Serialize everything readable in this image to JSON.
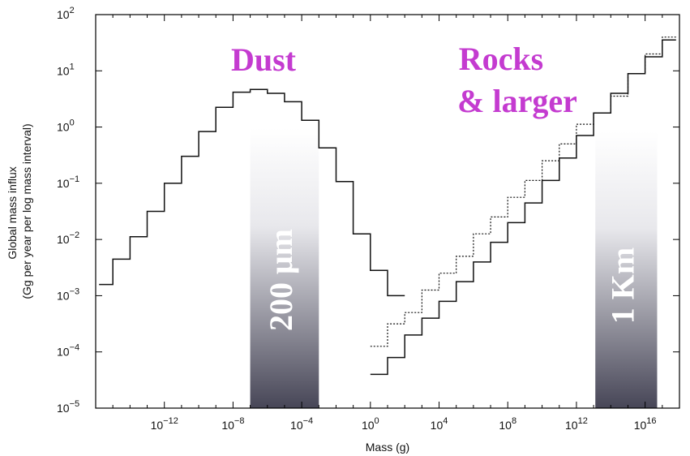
{
  "chart_data": {
    "type": "line",
    "xlabel": "Mass (g)",
    "ylabel_lines": [
      "Global mass influx",
      "(Gg per year per log mass interval)"
    ],
    "x_scale": "log",
    "y_scale": "log",
    "xlim_exp": [
      -16,
      18
    ],
    "ylim_exp": [
      -5,
      2
    ],
    "x_tick_exponents": [
      -12,
      -8,
      -4,
      0,
      4,
      8,
      12,
      16
    ],
    "y_tick_exponents": [
      2,
      1,
      0,
      -1,
      -2,
      -3,
      -4,
      -5
    ],
    "tick_base": "10",
    "grid": false,
    "series": [
      {
        "style": "solid",
        "bin_edges_log10_x": [
          -15.8,
          -15,
          -14,
          -13,
          -12,
          -11,
          -10,
          -9,
          -8,
          -7,
          -6,
          -5,
          -4,
          -3,
          -2,
          -1,
          0,
          1,
          2
        ],
        "values_log10_y": [
          -2.8,
          -2.35,
          -1.95,
          -1.5,
          -1.0,
          -0.52,
          -0.08,
          0.35,
          0.62,
          0.67,
          0.6,
          0.45,
          0.12,
          -0.37,
          -0.97,
          -1.9,
          -2.55,
          -3.0
        ]
      },
      {
        "style": "solid",
        "bin_edges_log10_x": [
          0,
          1,
          2,
          3,
          4,
          5,
          6,
          7,
          8,
          9,
          10,
          11,
          12,
          13,
          14,
          15,
          16,
          17,
          17.8
        ],
        "values_log10_y": [
          -4.4,
          -4.1,
          -3.7,
          -3.4,
          -3.1,
          -2.75,
          -2.4,
          -2.05,
          -1.7,
          -1.35,
          -0.95,
          -0.55,
          -0.15,
          0.25,
          0.6,
          0.95,
          1.25,
          1.55
        ]
      },
      {
        "style": "dotted",
        "bin_edges_log10_x": [
          0,
          1,
          2,
          3,
          4,
          5,
          6,
          7,
          8,
          9,
          10,
          11,
          12,
          13,
          14,
          15,
          16,
          17,
          17.8
        ],
        "values_log10_y": [
          -3.9,
          -3.5,
          -3.3,
          -2.9,
          -2.6,
          -2.3,
          -1.9,
          -1.6,
          -1.25,
          -0.95,
          -0.6,
          -0.3,
          0.05,
          0.25,
          0.55,
          0.95,
          1.3,
          1.6
        ]
      }
    ],
    "bands": [
      {
        "label": "200 μm",
        "x_range_log10": [
          -7,
          -3
        ],
        "color_top": "#ffffff",
        "color_bottom": "#474657"
      },
      {
        "label": "1 Km",
        "x_range_log10": [
          13.1,
          16.7
        ],
        "color_top": "#ffffff",
        "color_bottom": "#474657"
      }
    ],
    "annotations": [
      {
        "text": "Dust"
      },
      {
        "text_lines": [
          "Rocks",
          "& larger"
        ]
      }
    ]
  }
}
